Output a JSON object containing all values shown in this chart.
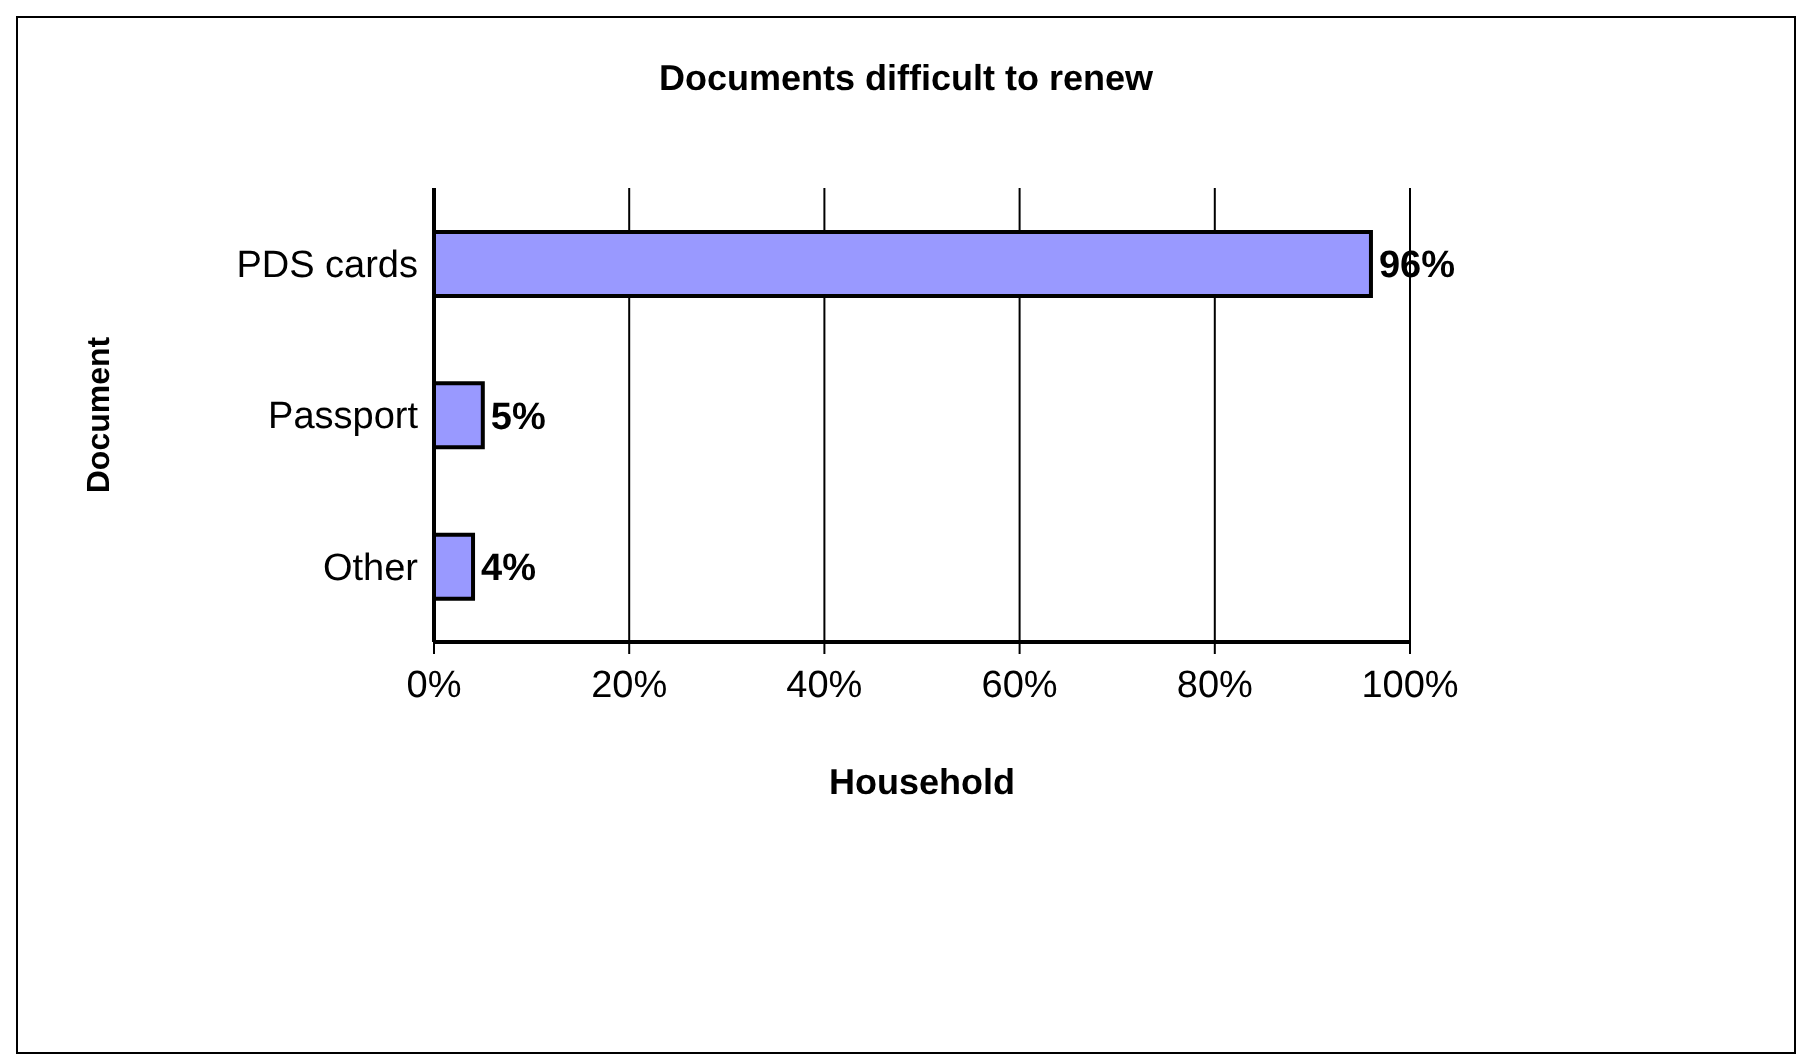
{
  "chart_data": {
    "type": "bar",
    "orientation": "horizontal",
    "title": "Documents difficult to renew",
    "xlabel": "Household",
    "ylabel": "Document",
    "categories": [
      "PDS cards",
      "Passport",
      "Other"
    ],
    "values": [
      96,
      5,
      4
    ],
    "color": "#9999ff",
    "value_labels": [
      "96%",
      "5%",
      "4%"
    ],
    "xlim": [
      0,
      100
    ],
    "xticks": [
      {
        "value": 0,
        "label": "0%"
      },
      {
        "value": 20,
        "label": "20%"
      },
      {
        "value": 40,
        "label": "40%"
      },
      {
        "value": 60,
        "label": "60%"
      },
      {
        "value": 80,
        "label": "80%"
      },
      {
        "value": 100,
        "label": "100%"
      }
    ],
    "grid": "x",
    "legend": false
  }
}
